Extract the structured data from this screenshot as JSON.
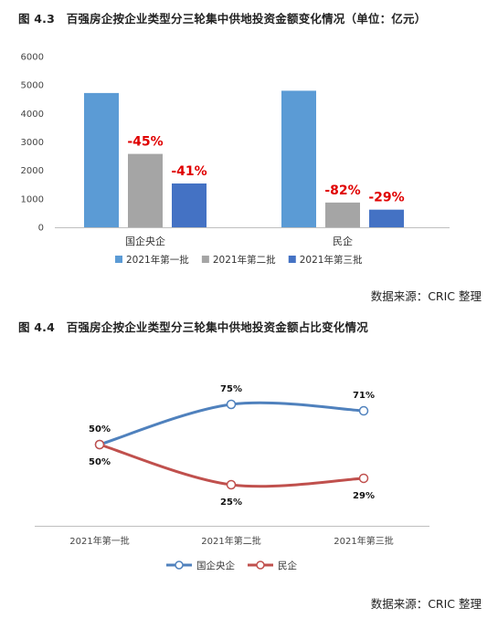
{
  "figure1": {
    "title": "图 4.3　百强房企按企业类型分三轮集中供地投资金额变化情况（单位：亿元）",
    "source": "数据来源：CRIC 整理"
  },
  "figure2": {
    "title": "图 4.4　百强房企按企业类型分三轮集中供地投资金额占比变化情况",
    "source": "数据来源：CRIC 整理"
  },
  "chart_data": [
    {
      "type": "bar",
      "title": "",
      "categories": [
        "国企央企",
        "民企"
      ],
      "series": [
        {
          "name": "2021年第一批",
          "values": [
            4720,
            4800
          ],
          "color": "#5b9bd5"
        },
        {
          "name": "2021年第二批",
          "values": [
            2580,
            870
          ],
          "color": "#a5a5a5"
        },
        {
          "name": "2021年第三批",
          "values": [
            1540,
            620
          ],
          "color": "#4472c4"
        }
      ],
      "annotations": [
        {
          "category": "国企央企",
          "series": "2021年第二批",
          "text": "-45%"
        },
        {
          "category": "国企央企",
          "series": "2021年第三批",
          "text": "-41%"
        },
        {
          "category": "民企",
          "series": "2021年第二批",
          "text": "-82%"
        },
        {
          "category": "民企",
          "series": "2021年第三批",
          "text": "-29%"
        }
      ],
      "ylim": [
        0,
        6000
      ],
      "yticks": [
        0,
        1000,
        2000,
        3000,
        4000,
        5000,
        6000
      ],
      "grid": false,
      "legend_position": "bottom"
    },
    {
      "type": "line",
      "title": "",
      "x": [
        "2021年第一批",
        "2021年第二批",
        "2021年第三批"
      ],
      "series": [
        {
          "name": "国企央企",
          "values": [
            50,
            75,
            71
          ],
          "labels": [
            "50%",
            "75%",
            "71%"
          ],
          "color": "#4f81bd"
        },
        {
          "name": "民企",
          "values": [
            50,
            25,
            29
          ],
          "labels": [
            "50%",
            "25%",
            "29%"
          ],
          "color": "#c0504d"
        }
      ],
      "ylim": [
        0,
        100
      ],
      "grid": false,
      "legend_position": "bottom"
    }
  ]
}
